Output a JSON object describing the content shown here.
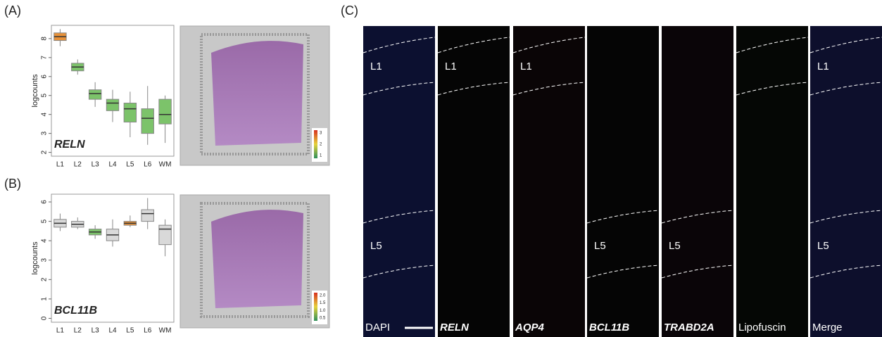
{
  "panel_labels": [
    "(A)",
    "(B)",
    "(C)"
  ],
  "chart_data": [
    {
      "type": "box",
      "annotation": "RELN",
      "y_label": "logcounts",
      "categories": [
        "L1",
        "L2",
        "L3",
        "L4",
        "L5",
        "L6",
        "WM"
      ],
      "min": [
        7.6,
        6.1,
        4.4,
        3.6,
        2.8,
        2.4,
        2.5
      ],
      "q1": [
        7.9,
        6.3,
        4.8,
        4.2,
        3.6,
        3.0,
        3.5
      ],
      "median": [
        8.1,
        6.5,
        5.1,
        4.6,
        4.3,
        3.8,
        4.0
      ],
      "q3": [
        8.3,
        6.7,
        5.3,
        4.8,
        4.6,
        4.3,
        4.8
      ],
      "max": [
        8.5,
        6.9,
        5.7,
        5.3,
        5.2,
        5.5,
        5.0
      ],
      "colors": [
        "#e8923a",
        "#7cc36a",
        "#7cc36a",
        "#7cc36a",
        "#7cc36a",
        "#7cc36a",
        "#7cc36a"
      ],
      "ylim": [
        1.8,
        8.7
      ],
      "yticks": [
        2,
        3,
        4,
        5,
        6,
        7,
        8
      ]
    },
    {
      "type": "box",
      "annotation": "BCL11B",
      "y_label": "logcounts",
      "categories": [
        "L1",
        "L2",
        "L3",
        "L4",
        "L5",
        "L6",
        "WM"
      ],
      "min": [
        4.5,
        4.6,
        4.1,
        3.7,
        4.7,
        4.6,
        3.2
      ],
      "q1": [
        4.7,
        4.7,
        4.3,
        4.0,
        4.8,
        5.0,
        3.8
      ],
      "median": [
        4.9,
        4.85,
        4.45,
        4.3,
        4.9,
        5.4,
        4.6
      ],
      "q3": [
        5.1,
        5.0,
        4.6,
        4.6,
        5.0,
        5.6,
        4.8
      ],
      "max": [
        5.4,
        5.2,
        4.8,
        5.1,
        5.3,
        6.2,
        5.1
      ],
      "colors": [
        "#d9d9d9",
        "#d9d9d9",
        "#7cc36a",
        "#d9d9d9",
        "#e8923a",
        "#d9d9d9",
        "#d9d9d9"
      ],
      "ylim": [
        -0.2,
        6.4
      ],
      "yticks": [
        0,
        1,
        2,
        3,
        4,
        5,
        6
      ]
    }
  ],
  "spatial_maps": [
    {
      "colorbar_labels": [
        "3",
        "2",
        "1"
      ]
    },
    {
      "colorbar_labels": [
        "2.0",
        "1.5",
        "1.0",
        "0.5"
      ]
    }
  ],
  "microscopy": {
    "channels": [
      {
        "name": "DAPI",
        "layers": [
          "L1",
          "L5"
        ]
      },
      {
        "name": "RELN",
        "layers": [
          "L1",
          null
        ]
      },
      {
        "name": "AQP4",
        "layers": [
          "L1",
          null
        ]
      },
      {
        "name": "BCL11B",
        "layers": [
          null,
          "L5"
        ]
      },
      {
        "name": "TRABD2A",
        "layers": [
          null,
          "L5"
        ]
      },
      {
        "name": "Lipofuscin",
        "layers": [
          null,
          null
        ]
      },
      {
        "name": "Merge",
        "layers": [
          "L1",
          "L5"
        ]
      }
    ]
  }
}
